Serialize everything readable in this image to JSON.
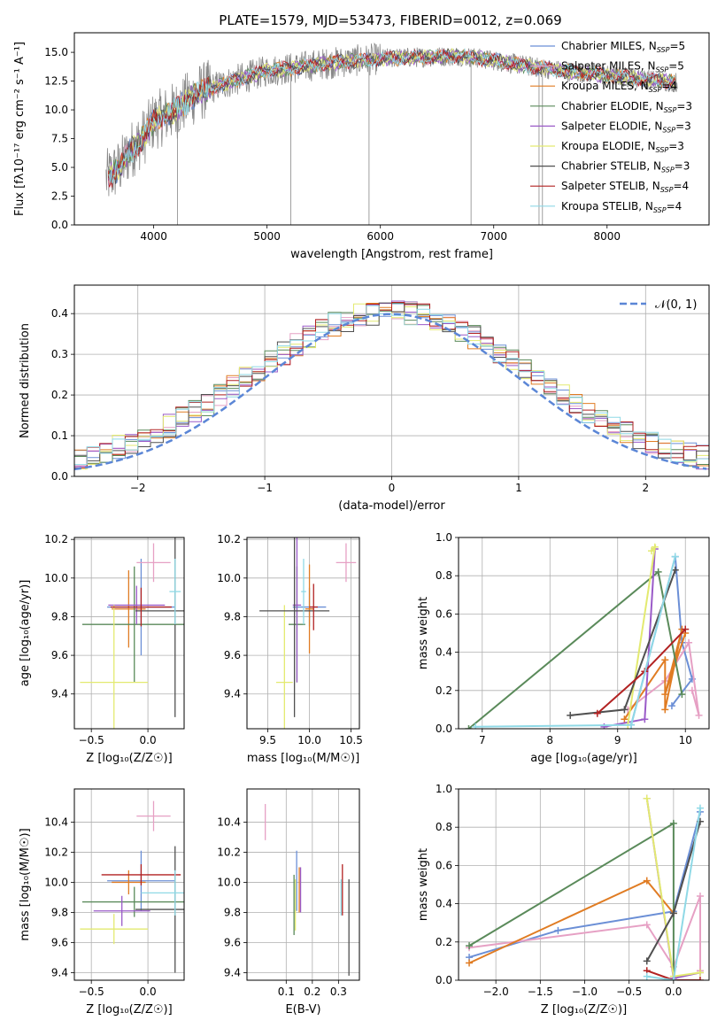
{
  "figure_title": "PLATE=1579, MJD=53473, FIBERID=0012, z=0.069",
  "colors": {
    "C_MILES": "#6b8fd6",
    "S_MILES": "#e6a0c4",
    "K_MILES": "#e07c23",
    "C_ELODIE": "#5a8a5a",
    "S_ELODIE": "#9a5ac8",
    "K_ELODIE": "#e3ea70",
    "C_STELIB": "#505050",
    "S_STELIB": "#b22222",
    "K_STELIB": "#8fd9e6",
    "normal": "#5b86d6",
    "grid": "#b0b0b0"
  },
  "chart_data": [
    {
      "id": "spectrum",
      "type": "line",
      "title": "PLATE=1579, MJD=53473, FIBERID=0012, z=0.069",
      "xlabel": "wavelength [Angstrom, rest frame]",
      "ylabel": "Flux [fλ10⁻¹⁷ erg cm⁻² s⁻¹ A⁻¹]",
      "xlim": [
        3300,
        8900
      ],
      "ylim": [
        0,
        16.7
      ],
      "xticks": [
        "4000",
        "5000",
        "6000",
        "7000",
        "8000"
      ],
      "yticks": [
        "0.0",
        "2.5",
        "5.0",
        "7.5",
        "10.0",
        "12.5",
        "15.0"
      ],
      "legend_position": "top-right",
      "legend": [
        "Chabrier MILES, N_SSP=5",
        "Salpeter MILES, N_SSP=5",
        "Kroupa MILES, N_SSP=4",
        "Chabrier ELODIE, N_SSP=3",
        "Salpeter ELODIE, N_SSP=3",
        "Kroupa ELODIE, N_SSP=3",
        "Chabrier STELIB, N_SSP=3",
        "Salpeter STELIB, N_SSP=4",
        "Kroupa STELIB, N_SSP=4"
      ],
      "data_envelope": {
        "x": [
          3580,
          3700,
          3800,
          3900,
          4000,
          4100,
          4200,
          4300,
          4400,
          4600,
          4800,
          5000,
          5200,
          5500,
          5800,
          6100,
          6400,
          6700,
          7000,
          7300,
          7600,
          8000,
          8400,
          8600
        ],
        "y": [
          4.0,
          5.0,
          6.5,
          7.5,
          9.0,
          9.5,
          10.0,
          10.8,
          11.5,
          12.2,
          12.8,
          13.4,
          13.6,
          14.0,
          14.3,
          14.5,
          14.6,
          14.7,
          14.3,
          13.8,
          13.4,
          13.0,
          12.6,
          12.4
        ]
      },
      "grid": false
    },
    {
      "id": "residuals",
      "type": "histogram",
      "xlabel": "(data-model)/error",
      "ylabel": "Normed distribution",
      "xlim": [
        -2.5,
        2.5
      ],
      "ylim": [
        0,
        0.47
      ],
      "xticks": [
        "−2",
        "−1",
        "0",
        "1",
        "2"
      ],
      "yticks": [
        "0.0",
        "0.1",
        "0.2",
        "0.3",
        "0.4"
      ],
      "legend": [
        "𝒩(0, 1)"
      ],
      "legend_position": "top-right",
      "grid": true
    },
    {
      "id": "age_vs_Z",
      "type": "errorbar",
      "xlabel": "Z [log₁₀(Z/Z☉)]",
      "ylabel": "age  [log₁₀(age/yr)]",
      "xlim": [
        -0.65,
        0.32
      ],
      "ylim": [
        9.22,
        10.21
      ],
      "xticks": [
        "−0.5",
        "0.0"
      ],
      "yticks": [
        "9.4",
        "9.6",
        "9.8",
        "10.0",
        "10.2"
      ],
      "grid": true,
      "points": [
        {
          "model": "C_MILES",
          "x": -0.06,
          "y": 9.85,
          "xerr": 0.3,
          "yerr": 0.25
        },
        {
          "model": "S_MILES",
          "x": 0.05,
          "y": 10.08,
          "xerr": 0.15,
          "yerr": 0.1
        },
        {
          "model": "K_MILES",
          "x": -0.17,
          "y": 9.84,
          "xerr": 0.15,
          "yerr": 0.2
        },
        {
          "model": "C_ELODIE",
          "x": -0.12,
          "y": 9.76,
          "xerr": 0.46,
          "yerr": 0.3
        },
        {
          "model": "S_ELODIE",
          "x": -0.1,
          "y": 9.86,
          "xerr": 0.25,
          "yerr": 0.1
        },
        {
          "model": "K_ELODIE",
          "x": -0.3,
          "y": 9.46,
          "xerr": 0.3,
          "yerr": 0.4
        },
        {
          "model": "C_STELIB",
          "x": 0.24,
          "y": 9.83,
          "xerr": 0.35,
          "yerr": 0.55
        },
        {
          "model": "S_STELIB",
          "x": -0.06,
          "y": 9.85,
          "xerr": 0.27,
          "yerr": 0.1
        },
        {
          "model": "K_STELIB",
          "x": 0.24,
          "y": 9.93,
          "xerr": 0.05,
          "yerr": 0.17
        }
      ]
    },
    {
      "id": "age_vs_mass",
      "type": "errorbar",
      "xlabel": "mass [log₁₀(M/M☉)]",
      "ylabel": "",
      "xlim": [
        9.25,
        10.6
      ],
      "ylim": [
        9.22,
        10.21
      ],
      "xticks": [
        "9.5",
        "10.0",
        "10.5"
      ],
      "yticks": [
        "9.4",
        "9.6",
        "9.8",
        "10.0",
        "10.2"
      ],
      "grid": true,
      "points": [
        {
          "model": "C_MILES",
          "x": 10.0,
          "y": 9.85,
          "xerr": 0.2,
          "yerr": 0.1
        },
        {
          "model": "S_MILES",
          "x": 10.44,
          "y": 10.08,
          "xerr": 0.12,
          "yerr": 0.1
        },
        {
          "model": "K_MILES",
          "x": 10.0,
          "y": 9.84,
          "xerr": 0.05,
          "yerr": 0.23
        },
        {
          "model": "C_ELODIE",
          "x": 9.85,
          "y": 9.76,
          "xerr": 0.1,
          "yerr": 0.3
        },
        {
          "model": "S_ELODIE",
          "x": 9.85,
          "y": 9.86,
          "xerr": 0.05,
          "yerr": 0.4
        },
        {
          "model": "K_ELODIE",
          "x": 9.7,
          "y": 9.46,
          "xerr": 0.1,
          "yerr": 0.4
        },
        {
          "model": "C_STELIB",
          "x": 9.82,
          "y": 9.83,
          "xerr": 0.42,
          "yerr": 0.55
        },
        {
          "model": "S_STELIB",
          "x": 10.05,
          "y": 9.85,
          "xerr": 0.05,
          "yerr": 0.12
        },
        {
          "model": "K_STELIB",
          "x": 9.93,
          "y": 9.93,
          "xerr": 0.03,
          "yerr": 0.17
        }
      ]
    },
    {
      "id": "weight_vs_age",
      "type": "line",
      "xlabel": "age  [log₁₀(age/yr)]",
      "ylabel": "mass weight",
      "xlim": [
        6.65,
        10.35
      ],
      "ylim": [
        0,
        1.0
      ],
      "xticks": [
        "7",
        "8",
        "9",
        "10"
      ],
      "yticks": [
        "0.0",
        "0.2",
        "0.4",
        "0.6",
        "0.8",
        "1.0"
      ],
      "grid": true,
      "series": [
        {
          "model": "C_MILES",
          "x": [
            9.2,
            9.85,
            9.95,
            10.1,
            9.8
          ],
          "y": [
            0.02,
            0.9,
            0.45,
            0.26,
            0.12
          ]
        },
        {
          "model": "S_MILES",
          "x": [
            9.15,
            9.7,
            10.05,
            10.2,
            10.1
          ],
          "y": [
            0.1,
            0.25,
            0.45,
            0.07,
            0.2
          ]
        },
        {
          "model": "K_MILES",
          "x": [
            9.1,
            9.7,
            9.7,
            9.95,
            9.7,
            10.0
          ],
          "y": [
            0.05,
            0.36,
            0.1,
            0.52,
            0.18,
            0.5
          ]
        },
        {
          "model": "C_ELODIE",
          "x": [
            6.8,
            9.6,
            9.95
          ],
          "y": [
            0.0,
            0.82,
            0.18
          ]
        },
        {
          "model": "S_ELODIE",
          "x": [
            8.8,
            9.4,
            9.55
          ],
          "y": [
            0.01,
            0.05,
            0.94
          ]
        },
        {
          "model": "K_ELODIE",
          "x": [
            9.15,
            9.55,
            9.5
          ],
          "y": [
            0.02,
            0.95,
            0.93
          ]
        },
        {
          "model": "C_STELIB",
          "x": [
            8.3,
            9.1,
            9.85
          ],
          "y": [
            0.07,
            0.1,
            0.83
          ]
        },
        {
          "model": "S_STELIB",
          "x": [
            8.7,
            9.4,
            10.0
          ],
          "y": [
            0.08,
            0.3,
            0.52
          ]
        },
        {
          "model": "K_STELIB",
          "x": [
            6.9,
            9.2,
            9.85
          ],
          "y": [
            0.01,
            0.02,
            0.9
          ]
        }
      ]
    },
    {
      "id": "mass_vs_Z",
      "type": "errorbar",
      "xlabel": "Z [log₁₀(Z/Z☉)]",
      "ylabel": "mass [log₁₀(M/M☉)]",
      "xlim": [
        -0.65,
        0.32
      ],
      "ylim": [
        9.35,
        10.62
      ],
      "xticks": [
        "−0.5",
        "0.0"
      ],
      "yticks": [
        "9.4",
        "9.6",
        "9.8",
        "10.0",
        "10.2",
        "10.4"
      ],
      "grid": true,
      "points": [
        {
          "model": "C_MILES",
          "x": -0.06,
          "y": 10.01,
          "xerr": 0.3,
          "yerr": 0.2
        },
        {
          "model": "S_MILES",
          "x": 0.05,
          "y": 10.44,
          "xerr": 0.15,
          "yerr": 0.1
        },
        {
          "model": "K_MILES",
          "x": -0.17,
          "y": 10.0,
          "xerr": 0.15,
          "yerr": 0.08
        },
        {
          "model": "C_ELODIE",
          "x": -0.12,
          "y": 9.87,
          "xerr": 0.46,
          "yerr": 0.1
        },
        {
          "model": "S_ELODIE",
          "x": -0.23,
          "y": 9.81,
          "xerr": 0.25,
          "yerr": 0.1
        },
        {
          "model": "K_ELODIE",
          "x": -0.3,
          "y": 9.69,
          "xerr": 0.3,
          "yerr": 0.1
        },
        {
          "model": "C_STELIB",
          "x": 0.24,
          "y": 9.82,
          "xerr": 0.35,
          "yerr": 0.42
        },
        {
          "model": "S_STELIB",
          "x": -0.06,
          "y": 10.05,
          "xerr": 0.35,
          "yerr": 0.07
        },
        {
          "model": "K_STELIB",
          "x": 0.24,
          "y": 9.93,
          "xerr": 0.3,
          "yerr": 0.15
        }
      ]
    },
    {
      "id": "mass_vs_ebv",
      "type": "errorbar",
      "xlabel": "E(B-V)",
      "ylabel": "",
      "xlim": [
        -0.05,
        0.38
      ],
      "ylim": [
        9.35,
        10.62
      ],
      "xticks": [
        "0.1",
        "0.2",
        "0.3"
      ],
      "yticks": [
        "9.4",
        "9.6",
        "9.8",
        "10.0",
        "10.2",
        "10.4"
      ],
      "grid": true,
      "points": [
        {
          "model": "C_MILES",
          "x": 0.14,
          "y": 10.01,
          "xerr": 0,
          "yerr": 0.2
        },
        {
          "model": "S_MILES",
          "x": 0.02,
          "y": 10.4,
          "xerr": 0,
          "yerr": 0.12
        },
        {
          "model": "K_MILES",
          "x": 0.15,
          "y": 9.95,
          "xerr": 0,
          "yerr": 0.15
        },
        {
          "model": "C_ELODIE",
          "x": 0.13,
          "y": 9.85,
          "xerr": 0,
          "yerr": 0.2
        },
        {
          "model": "S_ELODIE",
          "x": 0.155,
          "y": 9.95,
          "xerr": 0,
          "yerr": 0.15
        },
        {
          "model": "K_ELODIE",
          "x": 0.135,
          "y": 9.85,
          "xerr": 0,
          "yerr": 0.17
        },
        {
          "model": "C_STELIB",
          "x": 0.34,
          "y": 9.7,
          "xerr": 0,
          "yerr": 0.32
        },
        {
          "model": "S_STELIB",
          "x": 0.315,
          "y": 9.95,
          "xerr": 0,
          "yerr": 0.17
        },
        {
          "model": "K_STELIB",
          "x": 0.31,
          "y": 9.9,
          "xerr": 0,
          "yerr": 0.12
        }
      ]
    },
    {
      "id": "weight_vs_Z",
      "type": "line",
      "xlabel": "Z [log₁₀(Z/Z☉)]",
      "ylabel": "mass weight",
      "xlim": [
        -2.42,
        0.4
      ],
      "ylim": [
        0,
        1.0
      ],
      "xticks": [
        "−2.0",
        "−1.5",
        "−1.0",
        "−0.5",
        "0.0"
      ],
      "yticks": [
        "0.0",
        "0.2",
        "0.4",
        "0.6",
        "0.8",
        "1.0"
      ],
      "grid": true,
      "series": [
        {
          "model": "C_MILES",
          "x": [
            -2.3,
            -1.3,
            0.0,
            0.3
          ],
          "y": [
            0.12,
            0.26,
            0.36,
            0.88
          ]
        },
        {
          "model": "S_MILES",
          "x": [
            -2.3,
            -0.3,
            0.0,
            0.3,
            0.3
          ],
          "y": [
            0.17,
            0.29,
            0.07,
            0.44,
            0.05
          ]
        },
        {
          "model": "K_MILES",
          "x": [
            -2.3,
            -0.3,
            0.0
          ],
          "y": [
            0.09,
            0.52,
            0.35
          ]
        },
        {
          "model": "C_ELODIE",
          "x": [
            -2.3,
            0.0,
            0.0
          ],
          "y": [
            0.18,
            0.82,
            0.0
          ]
        },
        {
          "model": "S_ELODIE",
          "x": [
            -0.3,
            0.0,
            0.3
          ],
          "y": [
            0.95,
            0.01,
            0.04
          ]
        },
        {
          "model": "K_ELODIE",
          "x": [
            -0.3,
            0.0,
            0.3
          ],
          "y": [
            0.95,
            0.02,
            0.04
          ]
        },
        {
          "model": "C_STELIB",
          "x": [
            -0.3,
            0.0,
            0.3
          ],
          "y": [
            0.1,
            0.35,
            0.83
          ]
        },
        {
          "model": "S_STELIB",
          "x": [
            -0.3,
            0.0,
            0.3
          ],
          "y": [
            0.05,
            0.0,
            0.0
          ]
        },
        {
          "model": "K_STELIB",
          "x": [
            -0.3,
            0.0,
            0.3
          ],
          "y": [
            0.02,
            0.0,
            0.9
          ]
        }
      ]
    }
  ]
}
